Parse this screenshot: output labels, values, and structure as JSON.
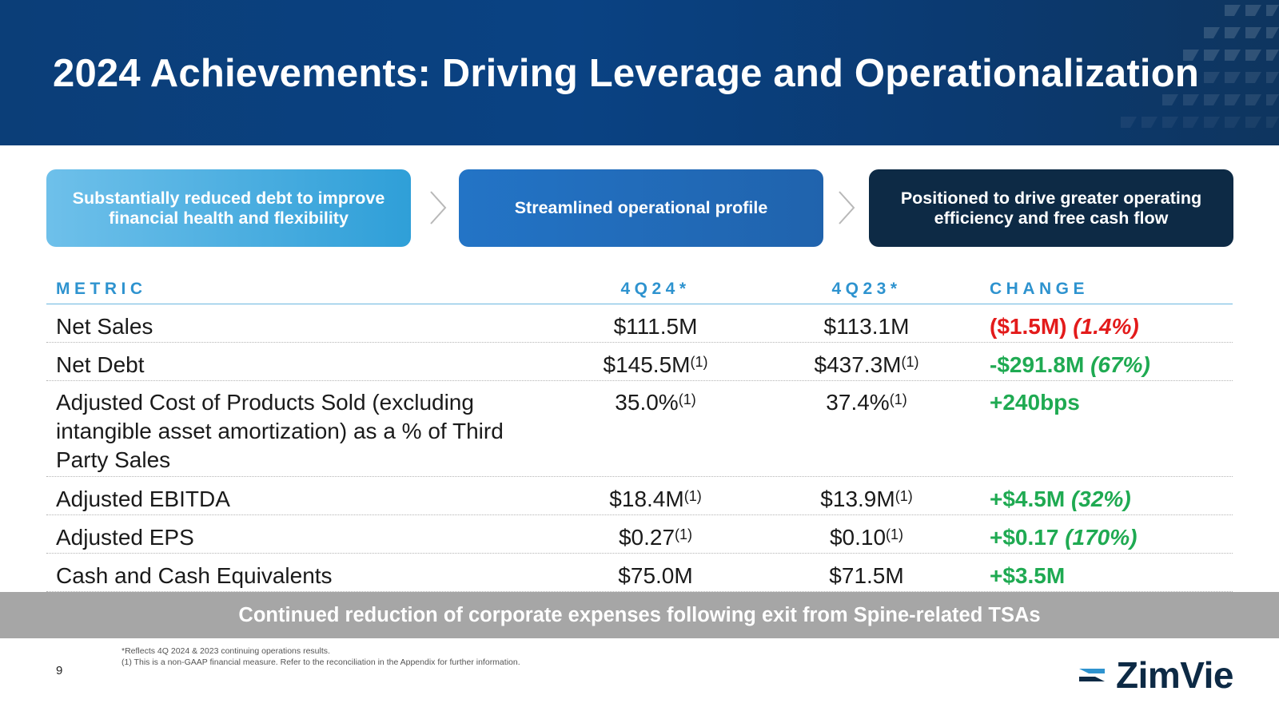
{
  "header": {
    "title": "2024 Achievements: Driving Leverage and Operationalization"
  },
  "pillars": [
    {
      "label": "Substantially reduced debt to improve financial health and flexibility"
    },
    {
      "label": "Streamlined operational profile"
    },
    {
      "label": "Positioned to drive greater operating efficiency and free cash flow"
    }
  ],
  "table": {
    "headers": {
      "metric": "METRIC",
      "q4_24": "4Q24*",
      "q4_23": "4Q23*",
      "change": "CHANGE"
    },
    "rows": [
      {
        "metric": "Net Sales",
        "q4_24": "$111.5M",
        "q4_24_note": "",
        "q4_23": "$113.1M",
        "q4_23_note": "",
        "change_main": "($1.5M)",
        "change_pct": "(1.4%)"
      },
      {
        "metric": "Net Debt",
        "q4_24": "$145.5M",
        "q4_24_note": "(1)",
        "q4_23": "$437.3M",
        "q4_23_note": "(1)",
        "change_main": "-$291.8M",
        "change_pct": "(67%)"
      },
      {
        "metric": "Adjusted Cost of Products Sold (excluding intangible asset amortization) as a % of Third Party Sales",
        "q4_24": "35.0%",
        "q4_24_note": "(1)",
        "q4_23": "37.4%",
        "q4_23_note": "(1)",
        "change_main": "+240bps",
        "change_pct": ""
      },
      {
        "metric": "Adjusted EBITDA",
        "q4_24": "$18.4M",
        "q4_24_note": "(1)",
        "q4_23": "$13.9M",
        "q4_23_note": "(1)",
        "change_main": "+$4.5M",
        "change_pct": "(32%)"
      },
      {
        "metric": "Adjusted EPS",
        "q4_24": "$0.27",
        "q4_24_note": "(1)",
        "q4_23": "$0.10",
        "q4_23_note": "(1)",
        "change_main": "+$0.17",
        "change_pct": "(170%)"
      },
      {
        "metric": "Cash and Cash Equivalents",
        "q4_24": "$75.0M",
        "q4_24_note": "",
        "q4_23": "$71.5M",
        "q4_23_note": "",
        "change_main": "+$3.5M",
        "change_pct": ""
      }
    ]
  },
  "banner": {
    "text": "Continued reduction of corporate expenses following exit from Spine-related TSAs"
  },
  "footer": {
    "footnote_1": "*Reflects 4Q 2024 & 2023 continuing operations results.",
    "footnote_2": "(1) This is a non-GAAP financial measure. Refer to the reconciliation in the Appendix for further information.",
    "page_number": "9",
    "logo_text": "ZimVie"
  },
  "colors": {
    "header_bg": "#0b3e78",
    "pill_1": "#2f9fd8",
    "pill_2": "#2063ad",
    "pill_3": "#0d2a45",
    "table_header": "#2e93cf",
    "negative": "#e31b1b",
    "positive": "#1faa52",
    "banner_bg": "#a6a6a6"
  },
  "icons": [
    "chevron-right-icon",
    "zimvie-logo-icon"
  ]
}
